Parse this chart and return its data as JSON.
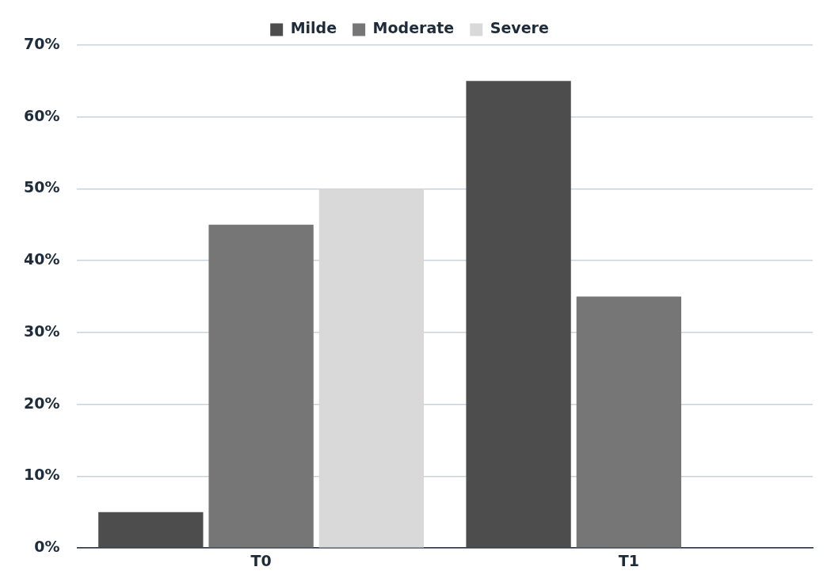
{
  "chart_data": {
    "type": "bar",
    "categories": [
      "T0",
      "T1"
    ],
    "series": [
      {
        "name": "Milde",
        "color": "#4d4d4d",
        "values": [
          5,
          65
        ]
      },
      {
        "name": "Moderate",
        "color": "#767676",
        "values": [
          45,
          35
        ]
      },
      {
        "name": "Severe",
        "color": "#d9d9d9",
        "values": [
          50,
          0
        ]
      }
    ],
    "ylim": [
      0,
      70
    ],
    "yticks": [
      {
        "value": 0,
        "label": "0%"
      },
      {
        "value": 10,
        "label": "10%"
      },
      {
        "value": 20,
        "label": "20%"
      },
      {
        "value": 30,
        "label": "30%"
      },
      {
        "value": 40,
        "label": "40%"
      },
      {
        "value": 50,
        "label": "50%"
      },
      {
        "value": 60,
        "label": "60%"
      },
      {
        "value": 70,
        "label": "70%"
      }
    ],
    "grid": "y",
    "legend": "top"
  }
}
